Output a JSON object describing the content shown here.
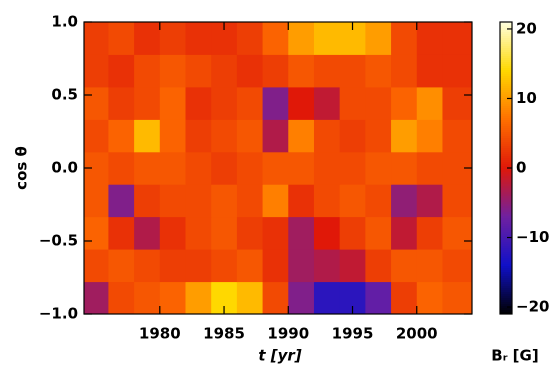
{
  "chart_data": {
    "type": "heatmap",
    "x_label": "t [yr]",
    "y_label": "cos θ",
    "colorbar_label": "Bᵣ [G]",
    "x": [
      1975,
      1977,
      1979,
      1981,
      1983,
      1985,
      1987,
      1989,
      1991,
      1993,
      1995,
      1997,
      1999,
      2001,
      2003
    ],
    "y": [
      -0.889,
      -0.667,
      -0.444,
      -0.222,
      0,
      0.222,
      0.444,
      0.667,
      0.889
    ],
    "z": [
      [
        -4,
        4,
        5,
        6,
        10,
        14,
        12,
        4,
        -6,
        -12,
        -12,
        -8,
        3,
        6,
        5
      ],
      [
        4,
        5,
        4,
        3,
        3,
        4,
        5,
        2,
        -4,
        -3,
        -2,
        3,
        5,
        5,
        4
      ],
      [
        6,
        2,
        -3,
        2,
        4,
        5,
        3,
        2,
        -4,
        0,
        3,
        5,
        -2,
        3,
        5
      ],
      [
        5,
        -6,
        3,
        4,
        4,
        5,
        4,
        8,
        2,
        4,
        5,
        4,
        -5,
        -3,
        4
      ],
      [
        5,
        4,
        5,
        5,
        4,
        3,
        4,
        5,
        5,
        4,
        4,
        5,
        5,
        4,
        4
      ],
      [
        4,
        6,
        12,
        6,
        3,
        4,
        5,
        -3,
        8,
        4,
        3,
        4,
        10,
        8,
        4
      ],
      [
        5,
        3,
        4,
        6,
        2,
        3,
        4,
        -6,
        0,
        -2,
        4,
        4,
        6,
        9,
        3
      ],
      [
        3,
        2,
        4,
        5,
        4,
        3,
        2,
        3,
        5,
        4,
        4,
        5,
        4,
        2,
        2
      ],
      [
        3,
        4,
        2,
        3,
        2,
        2,
        3,
        6,
        10,
        12,
        12,
        10,
        4,
        2,
        2
      ]
    ],
    "xlim": [
      1974.1,
      2004.3
    ],
    "xticks": [
      1980,
      1985,
      1990,
      1995,
      2000
    ],
    "ylim": [
      -1,
      1
    ],
    "yticks": [
      {
        "value": -1,
        "label": "−1.0"
      },
      {
        "value": -0.5,
        "label": "−0.5"
      },
      {
        "value": 0,
        "label": "0.0"
      },
      {
        "value": 0.5,
        "label": "0.5"
      },
      {
        "value": 1,
        "label": "1.0"
      }
    ],
    "clim": [
      -21,
      21
    ],
    "cticks": [
      {
        "value": -20,
        "label": "−20"
      },
      {
        "value": -10,
        "label": "−10"
      },
      0,
      10,
      20
    ],
    "colorscale": [
      "#000000",
      "#1010c8",
      "#7020a0",
      "#e01808",
      "#ff7000",
      "#ffd800",
      "#ffffe0"
    ]
  }
}
